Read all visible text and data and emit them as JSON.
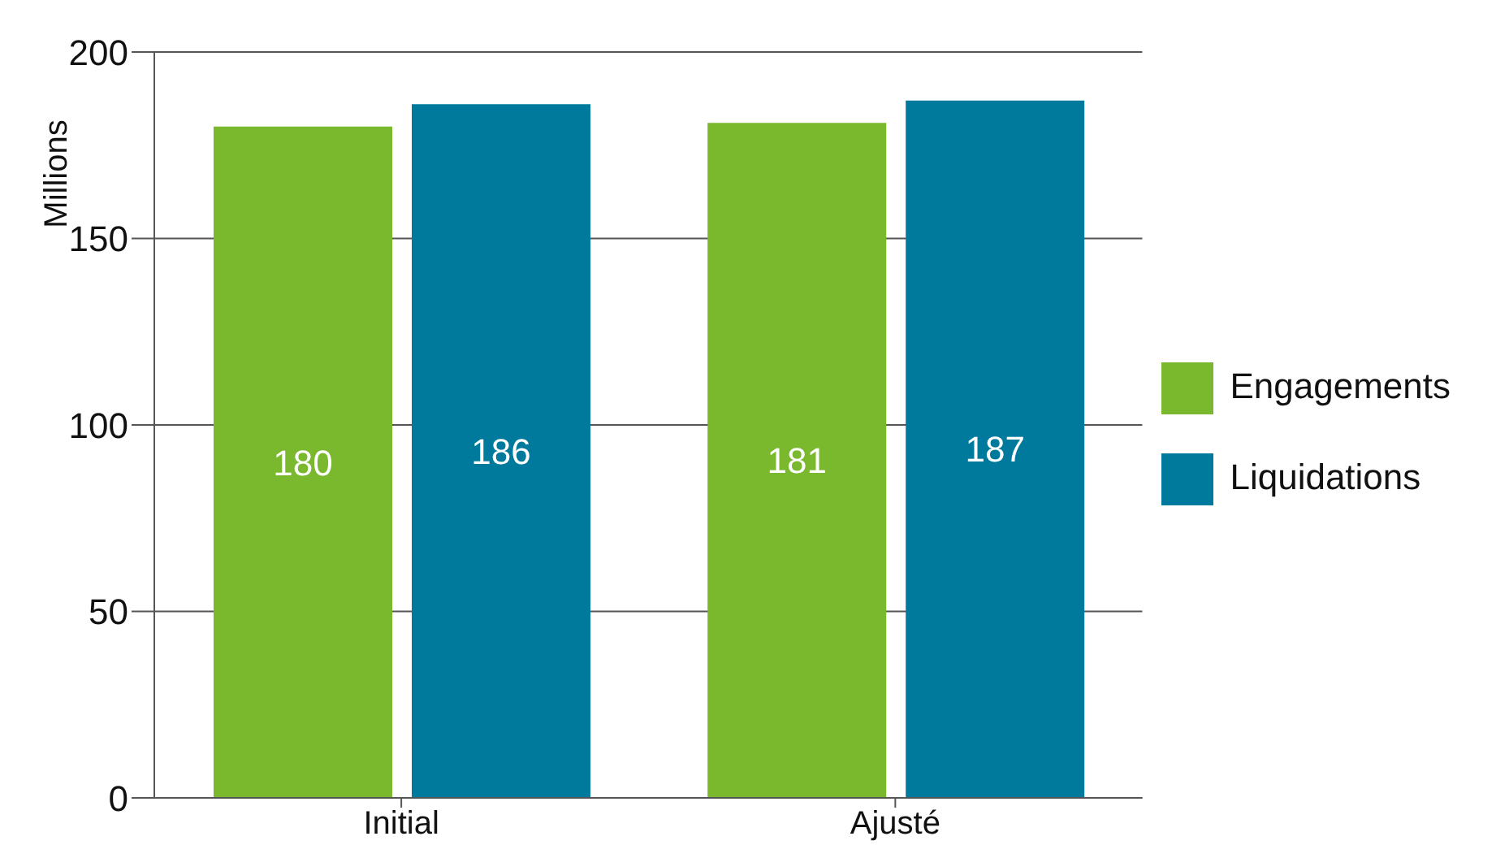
{
  "chart_data": {
    "type": "bar",
    "ylabel": "Millions",
    "categories": [
      "Initial",
      "Ajusté"
    ],
    "series": [
      {
        "name": "Engagements",
        "color": "#7ab82e",
        "values": [
          180,
          181
        ]
      },
      {
        "name": "Liquidations",
        "color": "#007a9c",
        "values": [
          186,
          187
        ]
      }
    ],
    "ylim": [
      0,
      200
    ],
    "yticks": [
      0,
      50,
      100,
      150,
      200
    ],
    "grid": "y",
    "legend": "right",
    "data_labels": true
  }
}
